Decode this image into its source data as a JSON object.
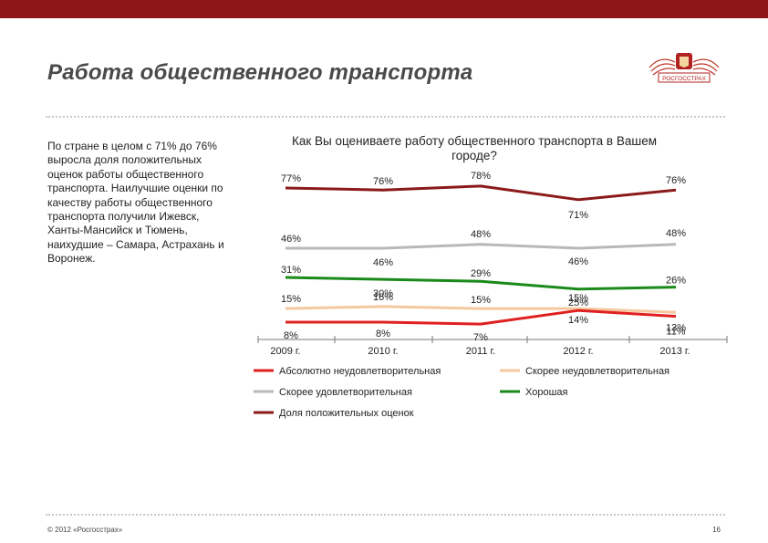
{
  "slide": {
    "title": "Работа общественного транспорта",
    "logo_text": "РОСГОССТРАХ",
    "body_text": "По стране в целом с 71% до 76% выросла доля положительных оценок работы общественного транспорта. Наилучшие оценки по качеству работы общественного транспорта получили Ижевск, Ханты-Мансийск и Тюмень, наихудшие – Самара, Астрахань и Воронеж.",
    "footer_copyright": "© 2012 «Росгосстрах»",
    "page_number": "16"
  },
  "colors": {
    "top_bar": "#8e1619",
    "dotted_line": "#c8c8c8"
  },
  "chart_data": {
    "type": "line",
    "title": "Как Вы оцениваете работу общественного транспорта в Вашем городе?",
    "categories": [
      "2009 г.",
      "2010 г.",
      "2011 г.",
      "2012 г.",
      "2013 г."
    ],
    "ylim": [
      0,
      85
    ],
    "grid": false,
    "legend_position": "bottom",
    "series": [
      {
        "name": "Доля положительных оценок",
        "values": [
          77,
          76,
          78,
          71,
          76
        ],
        "labels": [
          "77%",
          "76%",
          "78%",
          "71%",
          "76%"
        ],
        "color": "#8b1a1a"
      },
      {
        "name": "Скорее удовлетворительная",
        "values": [
          46,
          46,
          48,
          46,
          48
        ],
        "labels": [
          "46%",
          "46%",
          "48%",
          "46%",
          "48%"
        ],
        "color": "#b8b8b8"
      },
      {
        "name": "Хорошая",
        "values": [
          31,
          30,
          29,
          25,
          26
        ],
        "labels": [
          "31%",
          "30%",
          "29%",
          "25%",
          "26%"
        ],
        "color": "#1a8a1a"
      },
      {
        "name": "Скорее неудовлетворительная",
        "values": [
          15,
          16,
          15,
          15,
          13
        ],
        "labels": [
          "15%",
          "16%",
          "15%",
          "15%",
          "13%"
        ],
        "color": "#f5c8a0"
      },
      {
        "name": "Абсолютно неудовлетворительная",
        "values": [
          8,
          8,
          7,
          14,
          11
        ],
        "labels": [
          "8%",
          "8%",
          "7%",
          "14%",
          "11%"
        ],
        "color": "#e02020"
      }
    ],
    "legend_order": [
      "Абсолютно неудовлетворительная",
      "Скорее неудовлетворительная",
      "Скорее удовлетворительная",
      "Хорошая",
      "Доля положительных оценок"
    ]
  }
}
